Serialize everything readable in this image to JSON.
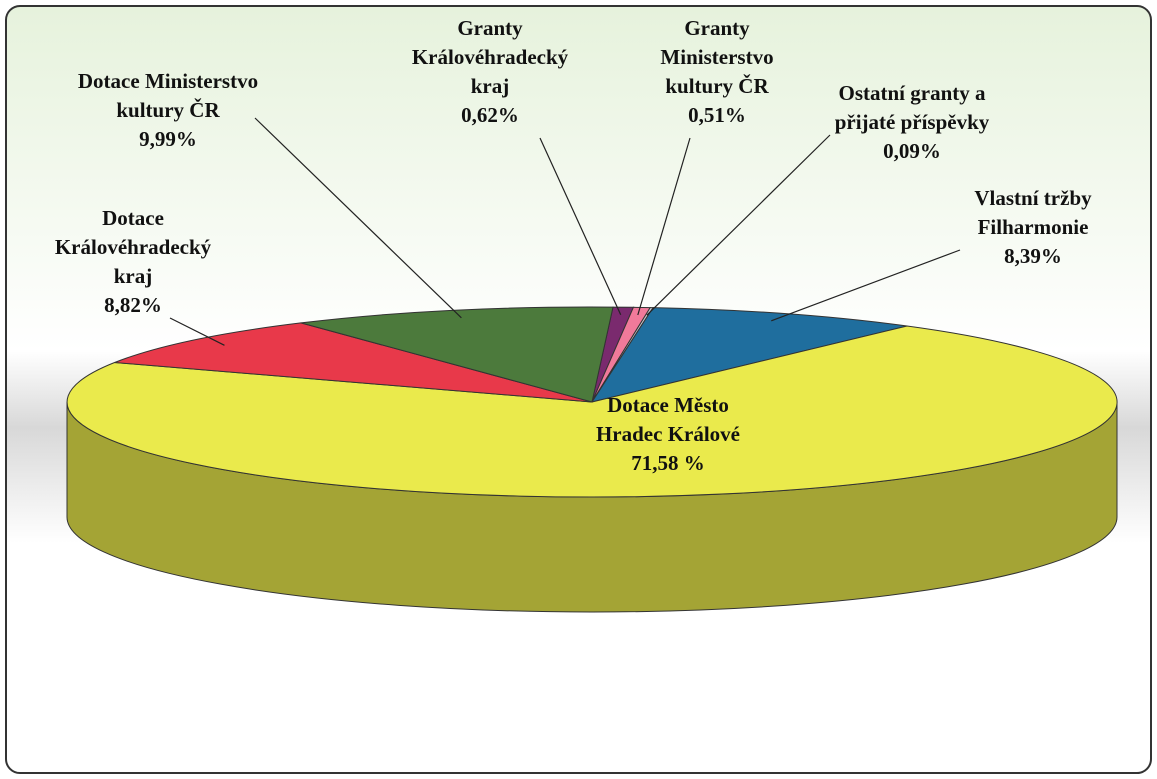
{
  "chart_data": {
    "type": "pie3d",
    "categories": [
      [
        "Granty",
        "Královéhradecký",
        "kraj"
      ],
      [
        "Granty",
        "Ministerstvo",
        "kultury ČR"
      ],
      [
        "Ostatní granty a",
        "přijaté příspěvky"
      ],
      [
        "Vlastní tržby",
        "Filharmonie"
      ],
      [
        "Dotace Město",
        "Hradec Králové"
      ],
      [
        "Dotace",
        "Královéhradecký",
        "kraj"
      ],
      [
        "Dotace Ministerstvo",
        "kultury ČR"
      ]
    ],
    "values": [
      0.62,
      0.51,
      0.09,
      8.39,
      71.58,
      8.82,
      9.99
    ],
    "value_labels": [
      "0,62%",
      "0,51%",
      "0,09%",
      "8,39%",
      "71,58 %",
      "8,82%",
      "9,99%"
    ],
    "colors": [
      "#7a2a6e",
      "#f07a9a",
      "#c8c8d0",
      "#1f6e9e",
      "#eaea4c",
      "#e8394a",
      "#4c7a3c"
    ]
  }
}
